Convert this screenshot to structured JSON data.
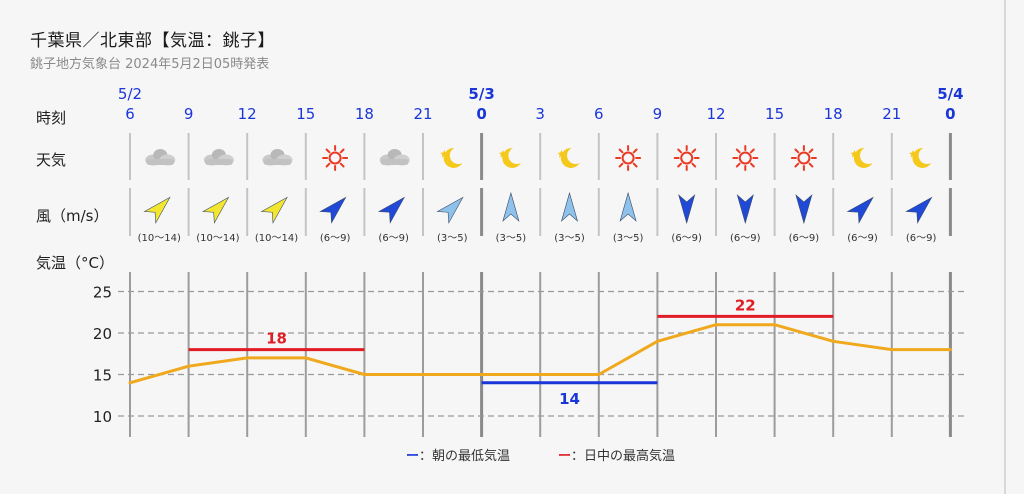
{
  "title": "千葉県／北東部【気温：銚子】",
  "subtitle": "銚子地方気象台 2024年5月2日05時発表",
  "row_labels": {
    "time": "時刻",
    "weather": "天気",
    "wind": "風（m/s）",
    "temp": "気温（°C）"
  },
  "dates": [
    {
      "label": "5/2",
      "col": 0
    },
    {
      "label": "5/3",
      "col": 6
    },
    {
      "label": "5/4",
      "col": 14
    }
  ],
  "hours": [
    "6",
    "9",
    "12",
    "15",
    "18",
    "21",
    "0",
    "3",
    "6",
    "9",
    "12",
    "15",
    "18",
    "21",
    "0"
  ],
  "hours_bold": [
    false,
    false,
    false,
    false,
    false,
    false,
    true,
    false,
    false,
    false,
    false,
    false,
    false,
    false,
    true
  ],
  "weather": [
    "cloud-icon",
    "cloud-icon",
    "cloud-icon",
    "sun-icon",
    "cloud-icon",
    "moon-icon",
    "moon-icon",
    "moon-icon",
    "sun-icon",
    "sun-icon",
    "sun-icon",
    "sun-icon",
    "moon-icon",
    "moon-icon"
  ],
  "wind": [
    {
      "dir": "SW",
      "range": "(10〜14)",
      "color": "#f2e62e"
    },
    {
      "dir": "SW",
      "range": "(10〜14)",
      "color": "#f2e62e"
    },
    {
      "dir": "SW",
      "range": "(10〜14)",
      "color": "#f2e62e"
    },
    {
      "dir": "SW",
      "range": "(6〜9)",
      "color": "#1f49d6"
    },
    {
      "dir": "SW",
      "range": "(6〜9)",
      "color": "#1f49d6"
    },
    {
      "dir": "SW",
      "range": "(3〜5)",
      "color": "#8fc2ea"
    },
    {
      "dir": "N",
      "range": "(3〜5)",
      "color": "#8fc2ea"
    },
    {
      "dir": "N",
      "range": "(3〜5)",
      "color": "#8fc2ea"
    },
    {
      "dir": "N",
      "range": "(3〜5)",
      "color": "#8fc2ea"
    },
    {
      "dir": "S",
      "range": "(6〜9)",
      "color": "#1f49d6"
    },
    {
      "dir": "S",
      "range": "(6〜9)",
      "color": "#1f49d6"
    },
    {
      "dir": "S",
      "range": "(6〜9)",
      "color": "#1f49d6"
    },
    {
      "dir": "SW",
      "range": "(6〜9)",
      "color": "#1f49d6"
    },
    {
      "dir": "SW",
      "range": "(6〜9)",
      "color": "#1f49d6"
    }
  ],
  "legend": {
    "min_dash": "ー",
    "min_label": "：朝の最低気温",
    "max_dash": "ー",
    "max_label": "：日中の最高気温"
  },
  "chart_data": {
    "type": "line",
    "x": [
      "5/2 6",
      "5/2 9",
      "5/2 12",
      "5/2 15",
      "5/2 18",
      "5/2 21",
      "5/3 0",
      "5/3 3",
      "5/3 6",
      "5/3 9",
      "5/3 12",
      "5/3 15",
      "5/3 18",
      "5/3 21",
      "5/4 0"
    ],
    "series": [
      {
        "values": [
          14,
          16,
          17,
          17,
          15,
          15,
          15,
          15,
          15,
          19,
          21,
          21,
          19,
          18,
          18
        ],
        "color": "#f0a81c"
      }
    ],
    "y_ticks": [
      10,
      15,
      20,
      25
    ],
    "ylim": [
      8,
      28
    ],
    "grid": true,
    "annotations": [
      {
        "kind": "max",
        "value": 18,
        "label": "18",
        "start": "5/2 9",
        "end": "5/2 18",
        "color": "#e01c24"
      },
      {
        "kind": "min",
        "value": 14,
        "label": "14",
        "start": "5/3 0",
        "end": "5/3 9",
        "color": "#1a36d8"
      },
      {
        "kind": "max",
        "value": 22,
        "label": "22",
        "start": "5/3 9",
        "end": "5/3 18",
        "color": "#e01c24"
      }
    ]
  }
}
